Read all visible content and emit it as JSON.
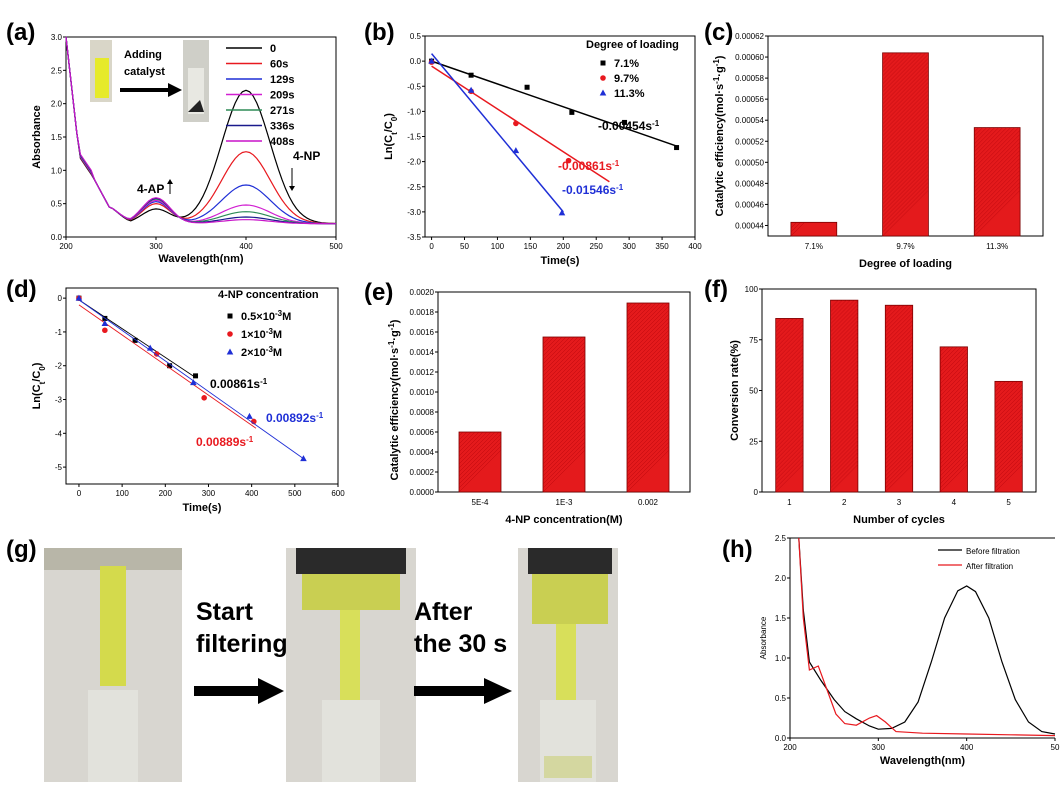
{
  "colors": {
    "black": "#000000",
    "red": "#e8191f",
    "blue": "#1f2fd6",
    "purple": "#d11fd1",
    "green": "#2e8b57",
    "darkblue": "#1a1a8c",
    "magenta": "#c814c8",
    "bar": "#e41a1c"
  },
  "panels": {
    "a": {
      "label": "(a)",
      "inset_text": "Adding catalyst",
      "ann_4ap": "4-AP",
      "ann_4np": "4-NP",
      "chart_data": {
        "type": "line",
        "xlabel": "Wavelength(nm)",
        "ylabel": "Absorbance",
        "xlim": [
          200,
          500
        ],
        "ylim": [
          0,
          3.0
        ],
        "xticks": [
          "200",
          "300",
          "400",
          "500"
        ],
        "yticks": [
          "0.0",
          "0.5",
          "1.0",
          "1.5",
          "2.0",
          "2.5",
          "3.0"
        ],
        "legend": [
          "0",
          "60s",
          "129s",
          "209s",
          "271s",
          "336s",
          "408s"
        ],
        "peak_400": [
          2.0,
          1.08,
          0.58,
          0.28,
          0.18,
          0.1,
          0.06
        ],
        "valley_300": [
          0.22,
          0.3,
          0.33,
          0.35,
          0.37,
          0.38,
          0.39
        ]
      }
    },
    "b": {
      "label": "(b)",
      "chart_data": {
        "type": "scatter",
        "legend_title": "Degree of loading",
        "xlabel": "Time(s)",
        "ylabel": "Ln(Ct/C0)",
        "xlim": [
          -10,
          400
        ],
        "ylim": [
          -3.5,
          0.5
        ],
        "xticks": [
          "0",
          "50",
          "100",
          "150",
          "200",
          "250",
          "300",
          "350",
          "400"
        ],
        "yticks": [
          "0.5",
          "0.0",
          "-0.5",
          "-1.0",
          "-1.5",
          "-2.0",
          "-2.5",
          "-3.0",
          "-3.5"
        ],
        "series": [
          {
            "name": "7.1%",
            "points": [
              [
                0,
                0
              ],
              [
                60,
                -0.28
              ],
              [
                145,
                -0.52
              ],
              [
                213,
                -1.02
              ],
              [
                293,
                -1.22
              ],
              [
                372,
                -1.72
              ]
            ],
            "fit": [
              [
                0,
                0.0
              ],
              [
                372,
                -1.69
              ]
            ],
            "rate": "-0.00454s-1"
          },
          {
            "name": "9.7%",
            "points": [
              [
                0,
                -0.02
              ],
              [
                60,
                -0.6
              ],
              [
                128,
                -1.24
              ],
              [
                208,
                -1.98
              ]
            ],
            "fit": [
              [
                0,
                -0.1
              ],
              [
                270,
                -2.4
              ]
            ],
            "rate": "-0.00861s-1"
          },
          {
            "name": "11.3%",
            "points": [
              [
                0,
                0.0
              ],
              [
                60,
                -0.58
              ],
              [
                128,
                -1.78
              ],
              [
                198,
                -3.02
              ]
            ],
            "fit": [
              [
                0,
                0.15
              ],
              [
                200,
                -3.0
              ]
            ],
            "rate": "-0.01546s-1"
          }
        ]
      }
    },
    "c": {
      "label": "(c)",
      "chart_data": {
        "type": "bar",
        "xlabel": "Degree of loading",
        "ylabel": "Catalytic efficiency(mol·s-1·g-1)",
        "categories": [
          "7.1%",
          "9.7%",
          "11.3%"
        ],
        "values": [
          0.000443,
          0.000604,
          0.000533
        ],
        "ylim": [
          0.00043,
          0.00062
        ],
        "yticks": [
          "0.00044",
          "0.00046",
          "0.00048",
          "0.00050",
          "0.00052",
          "0.00054",
          "0.00056",
          "0.00058",
          "0.00060",
          "0.00062"
        ]
      }
    },
    "d": {
      "label": "(d)",
      "chart_data": {
        "type": "scatter",
        "legend_title": "4-NP concentration",
        "xlabel": "Time(s)",
        "ylabel": "Ln(Ct/C0)",
        "xlim": [
          -30,
          600
        ],
        "ylim": [
          -5.5,
          0.3
        ],
        "xticks": [
          "0",
          "100",
          "200",
          "300",
          "400",
          "500",
          "600"
        ],
        "yticks": [
          "0",
          "-1",
          "-2",
          "-3",
          "-4",
          "-5"
        ],
        "series": [
          {
            "name": "0.5×10-3M",
            "points": [
              [
                0,
                0
              ],
              [
                60,
                -0.6
              ],
              [
                130,
                -1.25
              ],
              [
                210,
                -2.0
              ],
              [
                270,
                -2.3
              ]
            ],
            "fit": [
              [
                0,
                -0.05
              ],
              [
                270,
                -2.35
              ]
            ],
            "rate": "0.00861s-1"
          },
          {
            "name": "1×10-3M",
            "points": [
              [
                0,
                0
              ],
              [
                60,
                -0.95
              ],
              [
                180,
                -1.65
              ],
              [
                290,
                -2.95
              ],
              [
                405,
                -3.65
              ]
            ],
            "fit": [
              [
                0,
                -0.2
              ],
              [
                410,
                -3.85
              ]
            ],
            "rate": "0.00889s-1"
          },
          {
            "name": "2×10-3M",
            "points": [
              [
                0,
                0
              ],
              [
                60,
                -0.75
              ],
              [
                165,
                -1.48
              ],
              [
                265,
                -2.5
              ],
              [
                395,
                -3.5
              ],
              [
                520,
                -4.75
              ]
            ],
            "fit": [
              [
                0,
                -0.05
              ],
              [
                520,
                -4.75
              ]
            ],
            "rate": "0.00892s-1"
          }
        ]
      }
    },
    "e": {
      "label": "(e)",
      "chart_data": {
        "type": "bar",
        "xlabel": "4-NP concentration(M)",
        "ylabel": "Catalytic efficiency(mol·s-1·g-1)",
        "categories": [
          "5E-4",
          "1E-3",
          "0.002"
        ],
        "values": [
          0.0006,
          0.00155,
          0.00189
        ],
        "ylim": [
          0,
          0.002
        ],
        "yticks": [
          "0.0000",
          "0.0002",
          "0.0004",
          "0.0006",
          "0.0008",
          "0.0010",
          "0.0012",
          "0.0014",
          "0.0016",
          "0.0018",
          "0.0020"
        ]
      }
    },
    "f": {
      "label": "(f)",
      "chart_data": {
        "type": "bar",
        "xlabel": "Number of cycles",
        "ylabel": "Conversion rate(%)",
        "categories": [
          "1",
          "2",
          "3",
          "4",
          "5"
        ],
        "values": [
          85.5,
          94.5,
          92,
          71.5,
          54.5
        ],
        "ylim": [
          0,
          100
        ],
        "yticks": [
          "0",
          "25",
          "50",
          "75",
          "100"
        ]
      }
    },
    "g": {
      "label": "(g)",
      "arrow1": [
        "Start",
        "filtering"
      ],
      "arrow2": [
        "After",
        "the 30 s"
      ]
    },
    "h": {
      "label": "(h)",
      "chart_data": {
        "type": "line",
        "xlabel": "Wavelength(nm)",
        "ylabel": "Absorbance",
        "xlim": [
          200,
          500
        ],
        "ylim": [
          0,
          2.5
        ],
        "xticks": [
          "200",
          "300",
          "400",
          "50"
        ],
        "yticks": [
          "0.0",
          "0.5",
          "1.0",
          "1.5",
          "2.0",
          "2.5"
        ],
        "series": [
          {
            "name": "Before filtration",
            "points": [
              [
                210,
                2.5
              ],
              [
                215,
                1.6
              ],
              [
                222,
                0.95
              ],
              [
                235,
                0.72
              ],
              [
                250,
                0.48
              ],
              [
                262,
                0.33
              ],
              [
                275,
                0.24
              ],
              [
                290,
                0.15
              ],
              [
                300,
                0.11
              ],
              [
                315,
                0.12
              ],
              [
                330,
                0.2
              ],
              [
                345,
                0.45
              ],
              [
                360,
                0.95
              ],
              [
                375,
                1.5
              ],
              [
                390,
                1.84
              ],
              [
                400,
                1.9
              ],
              [
                410,
                1.83
              ],
              [
                425,
                1.5
              ],
              [
                440,
                0.95
              ],
              [
                455,
                0.48
              ],
              [
                470,
                0.2
              ],
              [
                485,
                0.08
              ],
              [
                500,
                0.05
              ]
            ]
          },
          {
            "name": "After filtration",
            "points": [
              [
                210,
                2.5
              ],
              [
                215,
                1.5
              ],
              [
                222,
                0.85
              ],
              [
                232,
                0.9
              ],
              [
                242,
                0.6
              ],
              [
                252,
                0.3
              ],
              [
                262,
                0.18
              ],
              [
                275,
                0.16
              ],
              [
                290,
                0.25
              ],
              [
                298,
                0.28
              ],
              [
                308,
                0.2
              ],
              [
                320,
                0.08
              ],
              [
                350,
                0.06
              ],
              [
                400,
                0.05
              ],
              [
                450,
                0.04
              ],
              [
                500,
                0.03
              ]
            ]
          }
        ]
      }
    }
  }
}
